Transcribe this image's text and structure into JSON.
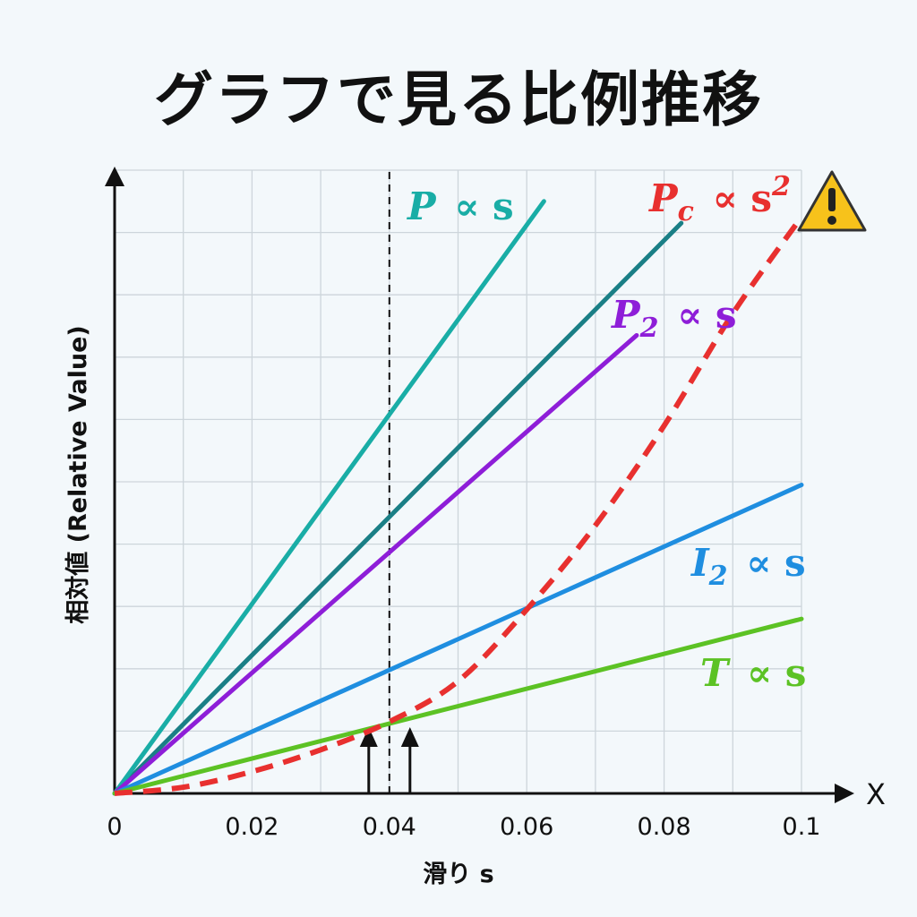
{
  "chart_data": {
    "type": "line",
    "title": "グラフで見る比例推移",
    "xlabel": "滑り s",
    "x_axis_end_label": "X",
    "ylabel": "相対値 (Relative Value)",
    "xlim": [
      0,
      0.1
    ],
    "ylim": [
      0,
      1
    ],
    "x_ticks": [
      "0",
      "0.02",
      "0.04",
      "0.06",
      "0.08",
      "0.1"
    ],
    "x_tick_values": [
      0,
      0.02,
      0.04,
      0.06,
      0.08,
      0.1
    ],
    "grid": true,
    "marker_line_x": 0.04,
    "arrow_marks_x": [
      0.037,
      0.043
    ],
    "warning_icon": "warning-triangle-icon",
    "series": [
      {
        "label_main": "P",
        "label_sub": "",
        "label_rel": "∝ s",
        "label_exp": "",
        "color": "#19ada6",
        "dashed": false,
        "x": [
          0,
          0.0625
        ],
        "y": [
          0,
          0.95
        ]
      },
      {
        "label_main": "",
        "label_sub": "",
        "label_rel": "",
        "label_exp": "",
        "color": "#1a7f86",
        "dashed": false,
        "x": [
          0,
          0.0825
        ],
        "y": [
          0,
          0.915
        ]
      },
      {
        "label_main": "P",
        "label_sub": "2",
        "label_rel": "∝ s",
        "label_exp": "",
        "color": "#8e1ed8",
        "dashed": false,
        "x": [
          0,
          0.076
        ],
        "y": [
          0,
          0.735
        ]
      },
      {
        "label_main": "I",
        "label_sub": "2",
        "label_rel": "∝ s",
        "label_exp": "",
        "color": "#1f8ee0",
        "dashed": false,
        "x": [
          0,
          0.1
        ],
        "y": [
          0,
          0.495
        ]
      },
      {
        "label_main": "T",
        "label_sub": "",
        "label_rel": "∝ s",
        "label_exp": "",
        "color": "#5cc224",
        "dashed": false,
        "x": [
          0,
          0.1
        ],
        "y": [
          0,
          0.28
        ]
      },
      {
        "label_main": "P",
        "label_sub": "c",
        "label_rel": "∝ s",
        "label_exp": "2",
        "color": "#e8302f",
        "dashed": true,
        "x": [
          0,
          0.01,
          0.02,
          0.03,
          0.04,
          0.05,
          0.06,
          0.07,
          0.08,
          0.09,
          0.1
        ],
        "y": [
          0,
          0.01,
          0.035,
          0.07,
          0.115,
          0.18,
          0.295,
          0.43,
          0.59,
          0.77,
          0.925
        ]
      }
    ]
  }
}
